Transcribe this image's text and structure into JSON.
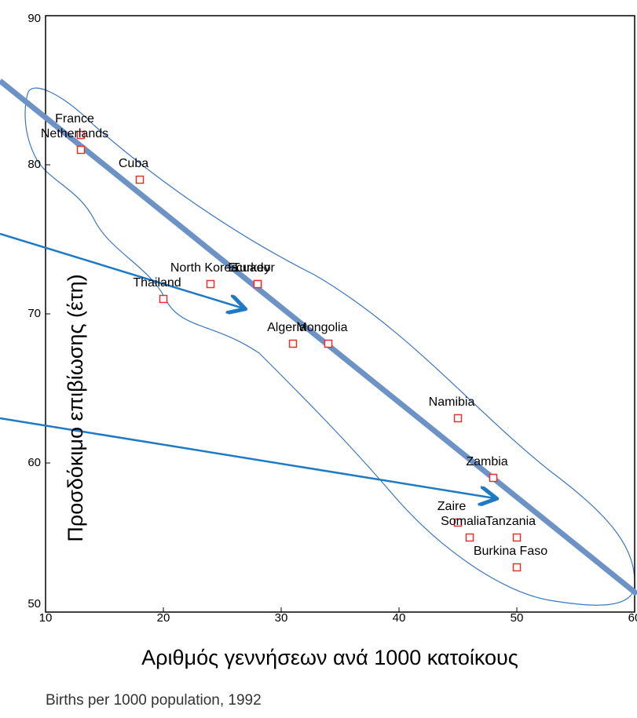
{
  "chart_data": {
    "type": "scatter",
    "x_label": "Αριθμός γεννήσεων ανά 1000 κατοίκους",
    "y_label": "Προσδόκιμο επιβίωσης (έτη)",
    "subtitle": "Births per 1000 population, 1992",
    "labels": [
      "France",
      "Netherlands",
      "Cuba",
      "Thailand",
      "North Korea",
      "Turkey",
      "Ecuador",
      "Algeria",
      "Mongolia",
      "Namibia",
      "Zambia",
      "Zaire",
      "Somalia",
      "Tanzania",
      "Burkina Faso"
    ],
    "x": [
      13,
      13,
      18,
      20,
      24,
      28,
      28,
      31,
      34,
      45,
      48,
      45,
      46,
      50,
      50
    ],
    "values": [
      82,
      81,
      79,
      71,
      72,
      72,
      72,
      68,
      68,
      63,
      59,
      56,
      55,
      55,
      53
    ],
    "color": "#e8312a",
    "xlim": [
      10,
      60
    ],
    "xticks": [
      10,
      20,
      30,
      40,
      50,
      60
    ],
    "ylim": [
      50,
      90
    ],
    "yticks": [
      50,
      60,
      70,
      80,
      90
    ]
  }
}
